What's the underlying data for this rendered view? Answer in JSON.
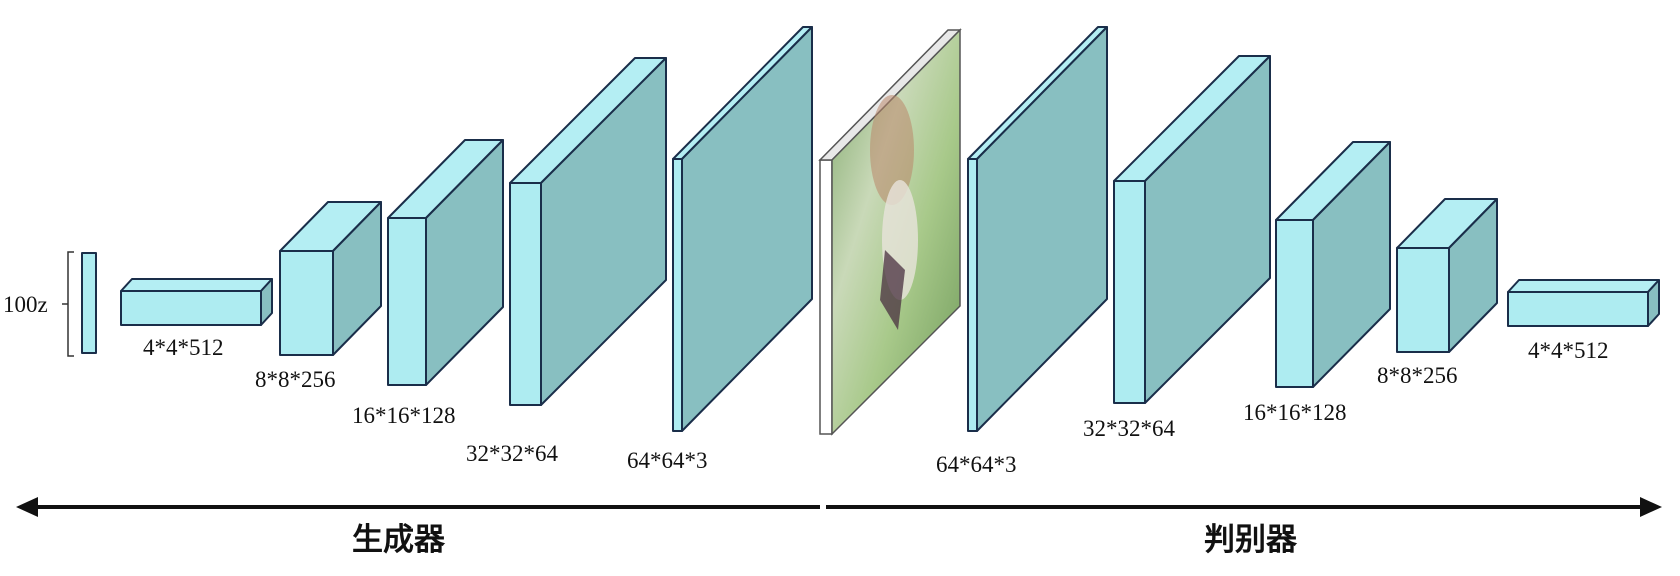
{
  "input_label": "100z",
  "generator": {
    "title": "生成器",
    "layers": [
      {
        "label": "4*4*512"
      },
      {
        "label": "8*8*256"
      },
      {
        "label": "16*16*128"
      },
      {
        "label": "32*32*64"
      },
      {
        "label": "64*64*3"
      }
    ]
  },
  "discriminator": {
    "title": "判别器",
    "layers": [
      {
        "label": "64*64*3"
      },
      {
        "label": "32*32*64"
      },
      {
        "label": "16*16*128"
      },
      {
        "label": "8*8*256"
      },
      {
        "label": "4*4*512"
      }
    ]
  },
  "colors": {
    "block_front": "#aeecf1",
    "block_side": "#88bfc1",
    "outline": "#1a2e4a",
    "arrow": "#111111"
  }
}
